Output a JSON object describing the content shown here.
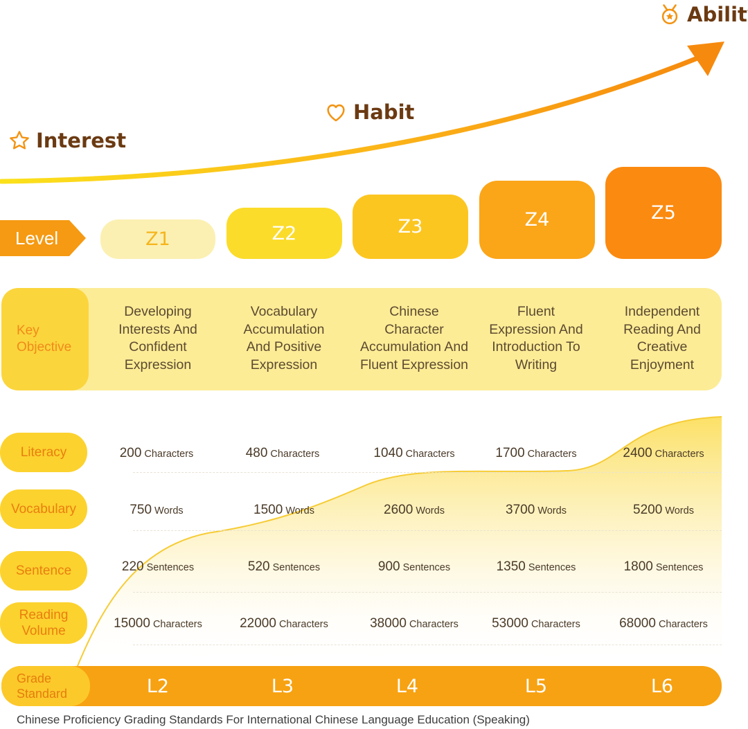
{
  "milestones": {
    "interest": "Interest",
    "habit": "Habit",
    "ability": "Ability"
  },
  "level": {
    "label": "Level",
    "items": [
      "Z1",
      "Z2",
      "Z3",
      "Z4",
      "Z5"
    ],
    "colors": [
      "#fbf0b2",
      "#fbdc2a",
      "#fcc621",
      "#fba519",
      "#fb8a10"
    ]
  },
  "key_objective": {
    "label_line1": "Key",
    "label_line2": "Objective",
    "items": [
      [
        "Developing",
        "Interests And",
        "Confident",
        "Expression"
      ],
      [
        "Vocabulary",
        "Accumulation",
        "And Positive",
        "Expression"
      ],
      [
        "Chinese",
        "Character",
        "Accumulation And",
        "Fluent Expression"
      ],
      [
        "Fluent",
        "Expression And",
        "Introduction To",
        "Writing"
      ],
      [
        "Independent",
        "Reading And",
        "Creative",
        "Enjoyment"
      ]
    ]
  },
  "metrics": [
    {
      "label_line1": "Literacy",
      "label_line2": "",
      "unit": "Characters",
      "values": [
        "200",
        "480",
        "1040",
        "1700",
        "2400"
      ]
    },
    {
      "label_line1": "Vocabulary",
      "label_line2": "",
      "unit": "Words",
      "values": [
        "750",
        "1500",
        "2600",
        "3700",
        "5200"
      ]
    },
    {
      "label_line1": "Sentence",
      "label_line2": "",
      "unit": "Sentences",
      "values": [
        "220",
        "520",
        "900",
        "1350",
        "1800"
      ]
    },
    {
      "label_line1": "Reading",
      "label_line2": "Volume",
      "unit": "Characters",
      "values": [
        "15000",
        "22000",
        "38000",
        "53000",
        "68000"
      ]
    }
  ],
  "grade": {
    "label_line1": "Grade",
    "label_line2": "Standard",
    "items": [
      "L2",
      "L3",
      "L4",
      "L5",
      "L6"
    ]
  },
  "caption": "Chinese Proficiency Grading Standards For International Chinese Language Education (Speaking)",
  "colors": {
    "accent": "#f59a12",
    "heading": "#6b3a12"
  }
}
